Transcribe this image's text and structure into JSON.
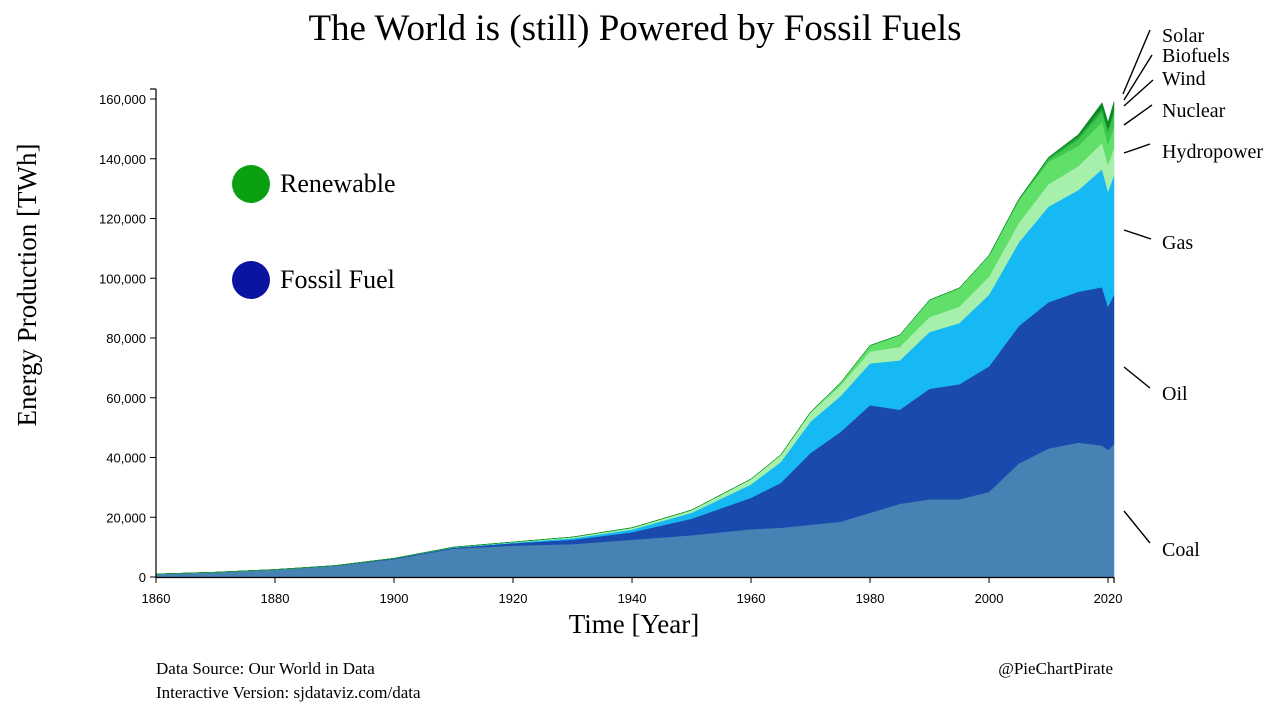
{
  "chart_data": {
    "type": "area",
    "stacked": true,
    "title": "The World is (still) Powered by Fossil Fuels",
    "xlabel": "Time [Year]",
    "ylabel": "Energy Production [TWh]",
    "xlim": [
      1860,
      2021
    ],
    "ylim": [
      0,
      160000
    ],
    "x_ticks": [
      1860,
      1880,
      1900,
      1920,
      1940,
      1960,
      1980,
      2000,
      2020
    ],
    "y_ticks": [
      0,
      20000,
      40000,
      60000,
      80000,
      100000,
      120000,
      140000,
      160000
    ],
    "y_tick_labels": [
      "0",
      "20,000",
      "40,000",
      "60,000",
      "80,000",
      "100,000",
      "120,000",
      "140,000",
      "160,000"
    ],
    "x": [
      1860,
      1870,
      1880,
      1890,
      1900,
      1910,
      1920,
      1930,
      1940,
      1950,
      1960,
      1965,
      1970,
      1975,
      1980,
      1985,
      1990,
      1995,
      2000,
      2005,
      2010,
      2015,
      2019,
      2020,
      2021
    ],
    "legend": [
      {
        "label": "Renewable",
        "color": "#0aa010"
      },
      {
        "label": "Fossil Fuel",
        "color": "#0a14a0"
      }
    ],
    "series": [
      {
        "name": "Coal",
        "group": "Fossil Fuel",
        "color": "#4682b4",
        "values": [
          1000,
          1600,
          2500,
          3700,
          6000,
          9500,
          10500,
          11000,
          12500,
          14000,
          16000,
          16500,
          17500,
          18500,
          21500,
          24500,
          26000,
          26000,
          28500,
          38000,
          43000,
          45000,
          44000,
          42500,
          44500
        ]
      },
      {
        "name": "Oil",
        "group": "Fossil Fuel",
        "color": "#1a4aad",
        "values": [
          0,
          0,
          10,
          100,
          200,
          300,
          800,
          1500,
          2500,
          5500,
          10500,
          15000,
          24000,
          30000,
          36000,
          31500,
          37000,
          38500,
          42000,
          46000,
          49000,
          50500,
          53000,
          48000,
          50000
        ]
      },
      {
        "name": "Gas",
        "group": "Fossil Fuel",
        "color": "#17b9f5",
        "values": [
          0,
          0,
          0,
          20,
          50,
          100,
          200,
          500,
          900,
          2000,
          4500,
          7000,
          10500,
          12000,
          14000,
          16500,
          19000,
          20500,
          24000,
          28000,
          32000,
          34000,
          39500,
          38500,
          40000
        ]
      },
      {
        "name": "Hydropower",
        "group": "Renewable",
        "color": "#a6f0ac",
        "values": [
          0,
          0,
          0,
          0,
          20,
          100,
          200,
          400,
          600,
          900,
          1800,
          2300,
          3000,
          3500,
          4000,
          4500,
          5000,
          5500,
          6000,
          6500,
          7500,
          8000,
          8800,
          9000,
          9200
        ]
      },
      {
        "name": "Nuclear",
        "group": "Renewable",
        "color": "#60e068",
        "values": [
          0,
          0,
          0,
          0,
          0,
          0,
          0,
          0,
          0,
          0,
          10,
          70,
          200,
          900,
          2000,
          4000,
          5700,
          6200,
          7000,
          7500,
          7400,
          6800,
          7000,
          6800,
          7000
        ]
      },
      {
        "name": "Wind",
        "group": "Renewable",
        "color": "#3fc850",
        "values": [
          0,
          0,
          0,
          0,
          0,
          0,
          0,
          0,
          0,
          0,
          0,
          0,
          0,
          0,
          0,
          0,
          10,
          20,
          80,
          250,
          900,
          2200,
          3500,
          4000,
          4600
        ]
      },
      {
        "name": "Biofuels",
        "group": "Renewable",
        "color": "#25ab3a",
        "values": [
          0,
          0,
          0,
          0,
          0,
          0,
          0,
          0,
          0,
          0,
          0,
          0,
          0,
          0,
          0,
          0,
          10,
          30,
          50,
          200,
          600,
          900,
          1100,
          1100,
          1150
        ]
      },
      {
        "name": "Solar",
        "group": "Renewable",
        "color": "#0b8a27",
        "values": [
          0,
          0,
          0,
          0,
          0,
          0,
          0,
          0,
          0,
          0,
          0,
          0,
          0,
          0,
          0,
          0,
          0,
          0,
          5,
          20,
          100,
          700,
          1900,
          2300,
          2700
        ]
      }
    ],
    "series_labels_top_to_bottom": [
      "Solar",
      "Biofuels",
      "Wind",
      "Nuclear",
      "Hydropower",
      "Gas",
      "Oil",
      "Coal"
    ]
  },
  "footer": {
    "source": "Data Source: Our World in Data",
    "interactive": "Interactive Version: sjdataviz.com/data",
    "credit": "@PieChartPirate"
  }
}
